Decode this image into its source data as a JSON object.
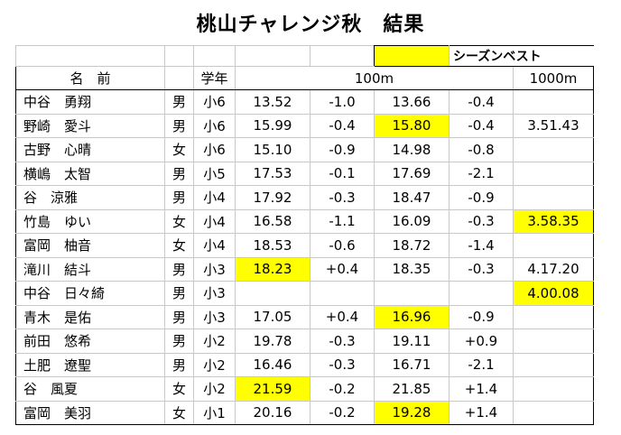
{
  "title": "桃山チャレンジ秋　結果",
  "legend": {
    "label": "シーズンベスト",
    "color": "#ffff00"
  },
  "headers": {
    "name": "名　前",
    "grade": "学年",
    "event1": "100m",
    "event2": "1000m"
  },
  "highlight_color": "#ffff00",
  "rows": [
    {
      "name": "中谷　勇翔",
      "gender": "男",
      "grade": "小6",
      "r1": "13.52",
      "w1": "-1.0",
      "r2": "13.66",
      "w2": "-0.4",
      "r1000": "",
      "hl": []
    },
    {
      "name": "野崎　愛斗",
      "gender": "男",
      "grade": "小6",
      "r1": "15.99",
      "w1": "-0.4",
      "r2": "15.80",
      "w2": "-0.4",
      "r1000": "3.51.43",
      "hl": [
        "r2"
      ]
    },
    {
      "name": "古野　心晴",
      "gender": "女",
      "grade": "小6",
      "r1": "15.10",
      "w1": "-0.9",
      "r2": "14.98",
      "w2": "-0.8",
      "r1000": "",
      "hl": []
    },
    {
      "name": "横嶋　太智",
      "gender": "男",
      "grade": "小5",
      "r1": "17.53",
      "w1": "-0.1",
      "r2": "17.69",
      "w2": "-2.1",
      "r1000": "",
      "hl": []
    },
    {
      "name": "谷　涼雅",
      "gender": "男",
      "grade": "小4",
      "r1": "17.92",
      "w1": "-0.3",
      "r2": "18.47",
      "w2": "-0.9",
      "r1000": "",
      "hl": []
    },
    {
      "name": "竹島　ゆい",
      "gender": "女",
      "grade": "小4",
      "r1": "16.58",
      "w1": "-1.1",
      "r2": "16.09",
      "w2": "-0.3",
      "r1000": "3.58.35",
      "hl": [
        "r1000"
      ]
    },
    {
      "name": "富岡　柚音",
      "gender": "女",
      "grade": "小4",
      "r1": "18.53",
      "w1": "-0.6",
      "r2": "18.72",
      "w2": "-1.4",
      "r1000": "",
      "hl": []
    },
    {
      "name": "滝川　結斗",
      "gender": "男",
      "grade": "小3",
      "r1": "18.23",
      "w1": "+0.4",
      "r2": "18.35",
      "w2": "-0.3",
      "r1000": "4.17.20",
      "hl": [
        "r1"
      ]
    },
    {
      "name": "中谷　日々綺",
      "gender": "男",
      "grade": "小3",
      "r1": "",
      "w1": "",
      "r2": "",
      "w2": "",
      "r1000": "4.00.08",
      "hl": [
        "r1000"
      ]
    },
    {
      "name": "青木　是佑",
      "gender": "男",
      "grade": "小3",
      "r1": "17.05",
      "w1": "+0.4",
      "r2": "16.96",
      "w2": "-0.9",
      "r1000": "",
      "hl": [
        "r2"
      ]
    },
    {
      "name": "前田　悠希",
      "gender": "男",
      "grade": "小2",
      "r1": "19.78",
      "w1": "-0.3",
      "r2": "19.11",
      "w2": "+0.9",
      "r1000": "",
      "hl": []
    },
    {
      "name": "土肥　遼聖",
      "gender": "男",
      "grade": "小2",
      "r1": "16.46",
      "w1": "-0.3",
      "r2": "16.71",
      "w2": "-2.1",
      "r1000": "",
      "hl": []
    },
    {
      "name": "谷　風夏",
      "gender": "女",
      "grade": "小2",
      "r1": "21.59",
      "w1": "-0.2",
      "r2": "21.85",
      "w2": "+1.4",
      "r1000": "",
      "hl": [
        "r1"
      ]
    },
    {
      "name": "富岡　美羽",
      "gender": "女",
      "grade": "小1",
      "r1": "20.16",
      "w1": "-0.2",
      "r2": "19.28",
      "w2": "+1.4",
      "r1000": "",
      "hl": [
        "r2"
      ]
    }
  ]
}
